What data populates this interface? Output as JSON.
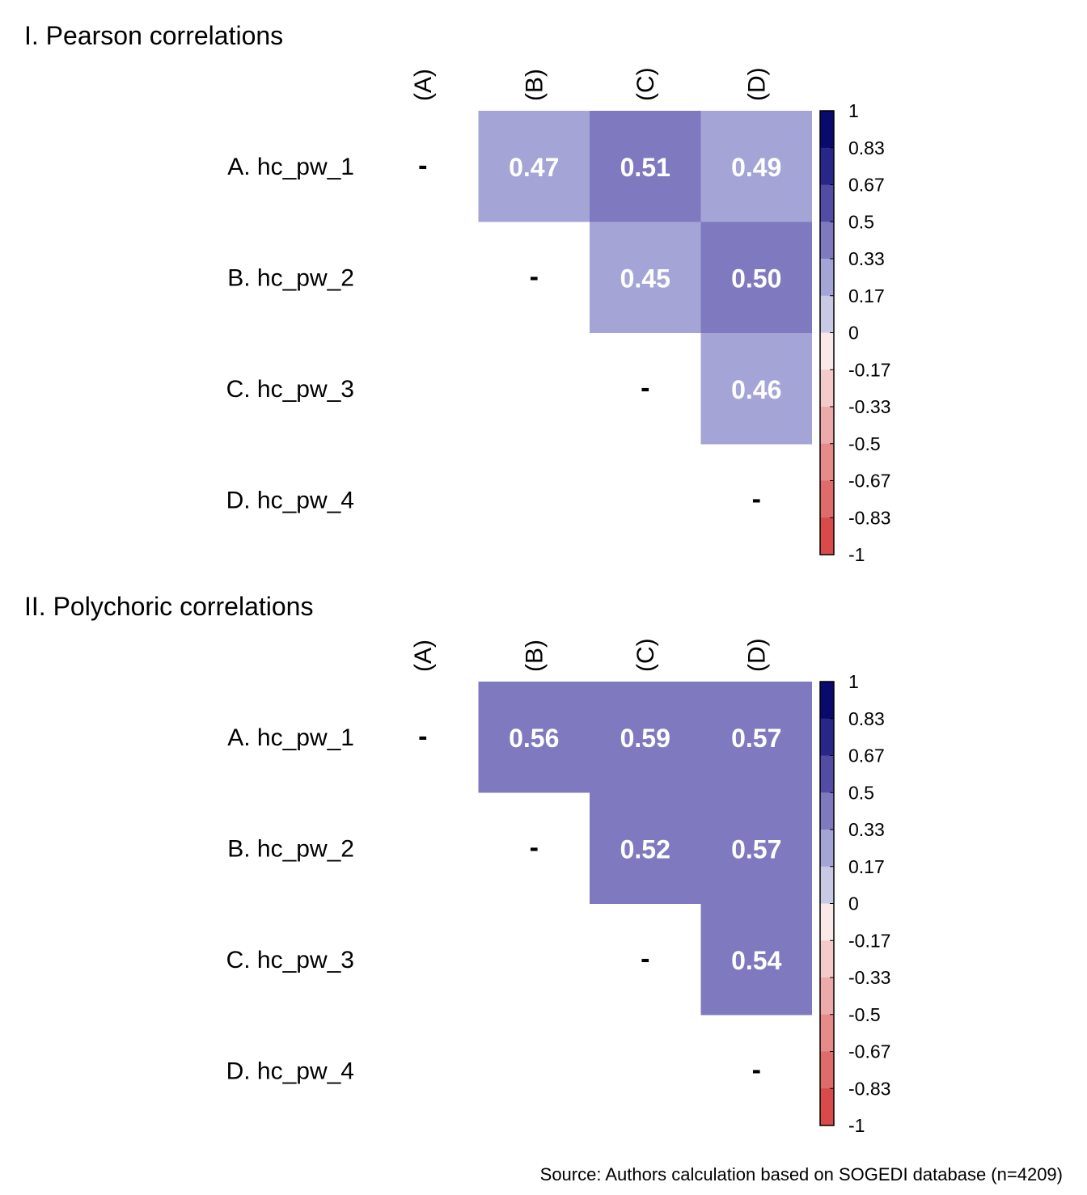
{
  "source_note": "Source: Authors calculation based on SOGEDI database (n=4209)",
  "palette": {
    "neg": [
      "#D94A4A",
      "#DF6B6B",
      "#E68A8A",
      "#EDAAAA",
      "#F4CACA",
      "#FBE8E8"
    ],
    "pos": [
      "#EDEDF8",
      "#C9C9E6",
      "#A4A4D6",
      "#7F7ABF",
      "#524CA5",
      "#292689",
      "#0A0A6E"
    ],
    "legend_border": "#000000"
  },
  "chart_data": [
    {
      "type": "heatmap",
      "title": "I. Pearson correlations",
      "row_labels": [
        "A. hc_pw_1",
        "B. hc_pw_2",
        "C. hc_pw_3",
        "D. hc_pw_4"
      ],
      "col_labels": [
        "(A)",
        "(B)",
        "(C)",
        "(D)"
      ],
      "diagonal_label": "-",
      "values": [
        [
          null,
          0.47,
          0.51,
          0.49
        ],
        [
          null,
          null,
          0.45,
          0.5
        ],
        [
          null,
          null,
          null,
          0.46
        ],
        [
          null,
          null,
          null,
          null
        ]
      ],
      "value_labels": [
        [
          "-",
          "0.47",
          "0.51",
          "0.49"
        ],
        [
          "",
          "-",
          "0.45",
          "0.50"
        ],
        [
          "",
          "",
          "-",
          "0.46"
        ],
        [
          "",
          "",
          "",
          "-"
        ]
      ],
      "legend": {
        "range": [
          -1,
          1
        ],
        "tick_labels": [
          "1",
          "0.83",
          "0.67",
          "0.5",
          "0.33",
          "0.17",
          "0",
          "-0.17",
          "-0.33",
          "-0.5",
          "-0.67",
          "-0.83",
          "-1"
        ],
        "placement": "right"
      }
    },
    {
      "type": "heatmap",
      "title": "II. Polychoric correlations",
      "row_labels": [
        "A. hc_pw_1",
        "B. hc_pw_2",
        "C. hc_pw_3",
        "D. hc_pw_4"
      ],
      "col_labels": [
        "(A)",
        "(B)",
        "(C)",
        "(D)"
      ],
      "diagonal_label": "-",
      "values": [
        [
          null,
          0.56,
          0.59,
          0.57
        ],
        [
          null,
          null,
          0.52,
          0.57
        ],
        [
          null,
          null,
          null,
          0.54
        ],
        [
          null,
          null,
          null,
          null
        ]
      ],
      "value_labels": [
        [
          "-",
          "0.56",
          "0.59",
          "0.57"
        ],
        [
          "",
          "-",
          "0.52",
          "0.57"
        ],
        [
          "",
          "",
          "-",
          "0.54"
        ],
        [
          "",
          "",
          "",
          "-"
        ]
      ],
      "legend": {
        "range": [
          -1,
          1
        ],
        "tick_labels": [
          "1",
          "0.83",
          "0.67",
          "0.5",
          "0.33",
          "0.17",
          "0",
          "-0.17",
          "-0.33",
          "-0.5",
          "-0.67",
          "-0.83",
          "-1"
        ],
        "placement": "right"
      }
    }
  ]
}
